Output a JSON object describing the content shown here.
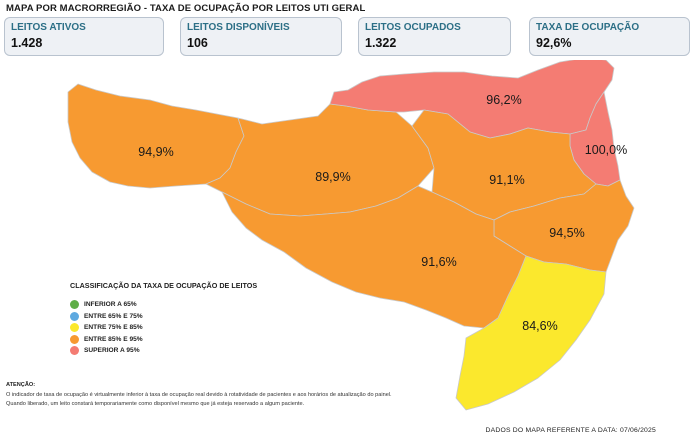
{
  "title": "MAPA POR MACRORREGIÃO - TAXA DE OCUPAÇÃO POR LEITOS UTI GERAL",
  "cards": [
    {
      "label": "LEITOS ATIVOS",
      "value": "1.428"
    },
    {
      "label": "LEITOS DISPONÍVEIS",
      "value": "106"
    },
    {
      "label": "LEITOS OCUPADOS",
      "value": "1.322"
    },
    {
      "label": "TAXA DE OCUPAÇÃO",
      "value": "92,6%"
    }
  ],
  "regions": [
    {
      "name": "north",
      "value": "96,2%",
      "color": "#f47c73"
    },
    {
      "name": "northeast",
      "value": "100,0%",
      "color": "#f47c73"
    },
    {
      "name": "far-west",
      "value": "94,9%",
      "color": "#f79a31"
    },
    {
      "name": "midwest",
      "value": "89,9%",
      "color": "#f79a31"
    },
    {
      "name": "vale",
      "value": "91,1%",
      "color": "#f79a31"
    },
    {
      "name": "plateau",
      "value": "91,6%",
      "color": "#f79a31"
    },
    {
      "name": "greater-florianopolis",
      "value": "94,5%",
      "color": "#f79a31"
    },
    {
      "name": "south",
      "value": "84,6%",
      "color": "#fbe82d"
    }
  ],
  "legend": {
    "title": "CLASSIFICAÇÃO DA TAXA DE OCUPAÇÃO DE LEITOS",
    "items": [
      {
        "label": "INFERIOR A 65%",
        "color": "#5fae48"
      },
      {
        "label": "ENTRE 65% E 75%",
        "color": "#5ea9e0"
      },
      {
        "label": "ENTRE 75% E 85%",
        "color": "#fbe82d"
      },
      {
        "label": "ENTRE 85% E 95%",
        "color": "#f79a31"
      },
      {
        "label": "SUPERIOR A 95%",
        "color": "#f47c73"
      }
    ]
  },
  "attention": {
    "title": "ATENÇÃO:",
    "line1": "O indicador de taxa de ocupação é virtualmente inferior à taxa de ocupação real devido à rotatividade de pacientes e aos horários de atualização do painel.",
    "line2": "Quando liberado, um leito constará temporariamente como disponível mesmo que já esteja reservado a algum paciente."
  },
  "footer": "DADOS DO MAPA REFERENTE A DATA: 07/06/2025"
}
